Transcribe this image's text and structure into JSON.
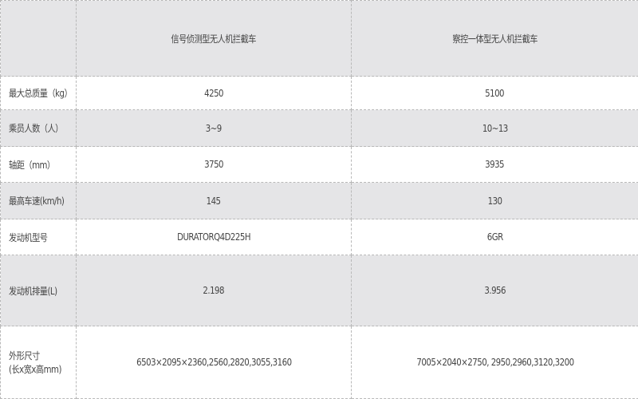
{
  "header": {
    "corner": "",
    "columns": [
      "信号侦测型无人机拦截车",
      "察控一体型无人机拦截车"
    ]
  },
  "rows": [
    {
      "label": "最大总质量（kg）",
      "values": [
        "4250",
        "5100"
      ]
    },
    {
      "label": "乘员人数（人）",
      "values": [
        "3~9",
        "10~13"
      ]
    },
    {
      "label": "轴距（mm）",
      "values": [
        "3750",
        "3935"
      ]
    },
    {
      "label": "最高车速(km/h)",
      "values": [
        "145",
        "130"
      ]
    },
    {
      "label": "发动机型号",
      "values": [
        "DURATORQ4D225H",
        "6GR"
      ]
    },
    {
      "label": "发动机排量(L)",
      "values": [
        "2.198",
        "3.956"
      ]
    },
    {
      "label": "外形尺寸\n(长x宽x高mm)",
      "label_lines": [
        "外形尺寸",
        "(长x宽x高mm)"
      ],
      "values": [
        "6503×2095×2360,2560,2820,3055,3160",
        "7005×2040×2750, 2950,2960,3120,3200"
      ]
    }
  ],
  "colors": {
    "shaded_row": "#e5e5e7",
    "text": "#444444",
    "border": "#b8b8b8"
  }
}
